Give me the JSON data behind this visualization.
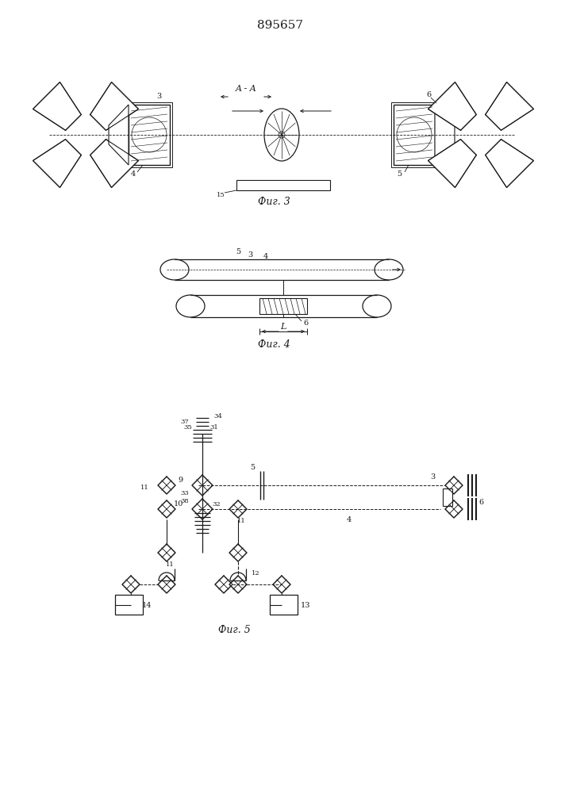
{
  "title": "895657",
  "bg_color": "#ffffff",
  "line_color": "#1a1a1a",
  "fig3_label": "Фиг. 3",
  "fig4_label": "Фиг. 4",
  "fig5_label": "Фиг. 5",
  "label_AA": "A - A"
}
